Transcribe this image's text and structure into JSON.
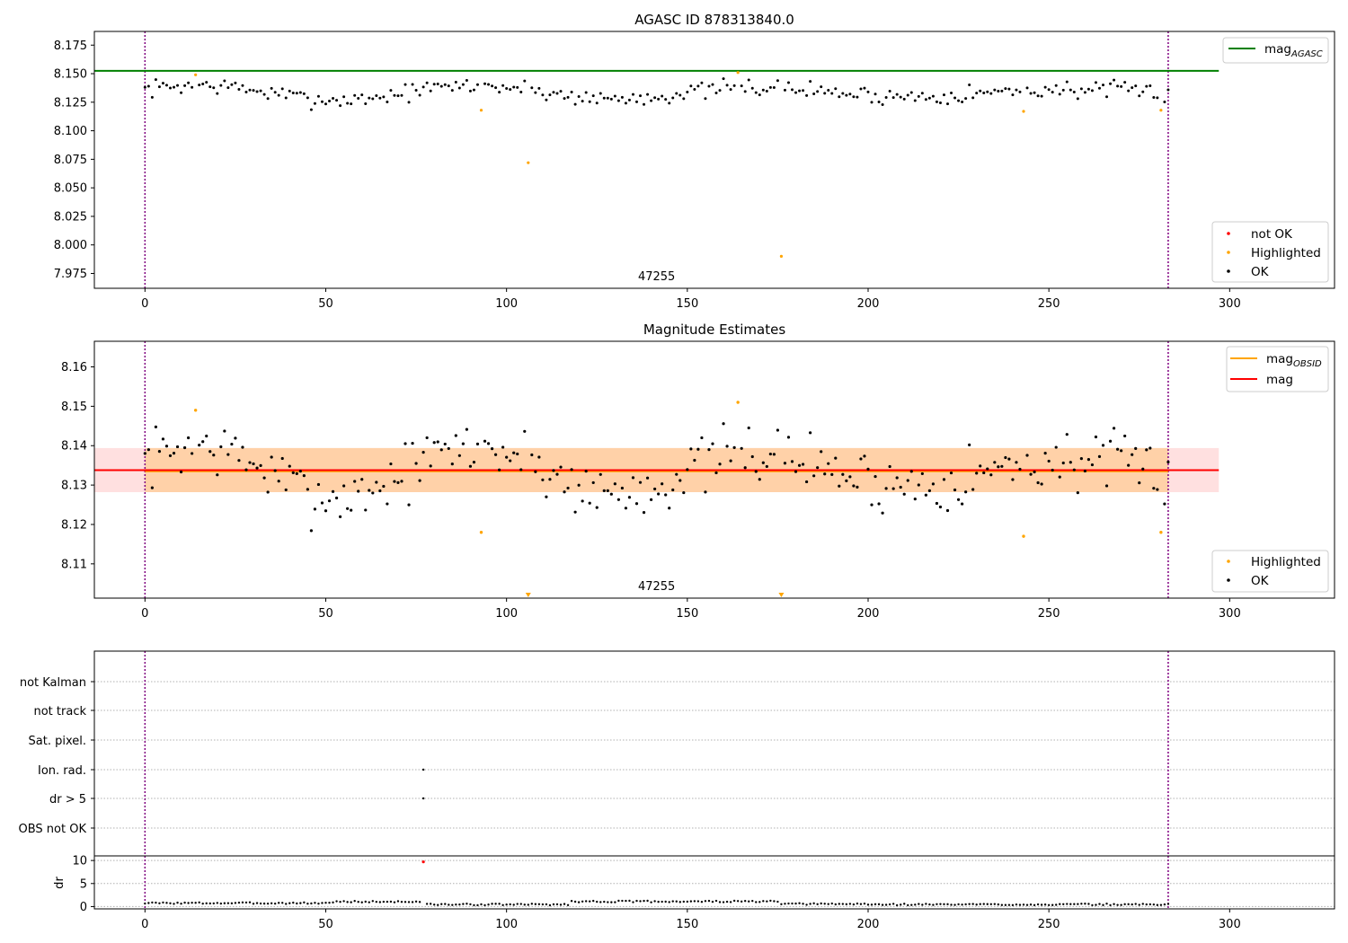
{
  "chart_data": [
    {
      "type": "scatter",
      "title": "AGASC ID 878313840.0",
      "xlim": [
        -14,
        329
      ],
      "ylim": [
        7.962,
        8.187
      ],
      "xticks": [
        "0",
        "50",
        "100",
        "150",
        "200",
        "250",
        "300"
      ],
      "yticks": [
        "7.975",
        "8.000",
        "8.025",
        "8.050",
        "8.075",
        "8.100",
        "8.125",
        "8.150",
        "8.175"
      ],
      "obsid_label": "47255",
      "obsid_boundaries": [
        0,
        283
      ],
      "lines": [
        {
          "name": "mag",
          "sub": "AGASC",
          "color": "#008000",
          "y": 8.1525,
          "x_range": [
            -14,
            297
          ]
        }
      ],
      "legend_lines": [
        {
          "name": "mag",
          "sub": "AGASC",
          "color": "#008000"
        }
      ],
      "legend_points": [
        {
          "name": "not OK",
          "color": "#ff0000"
        },
        {
          "name": "Highlighted",
          "color": "#ffa500"
        },
        {
          "name": "OK",
          "color": "#000000"
        }
      ],
      "highlighted": {
        "x": [
          14,
          93,
          106,
          164,
          176,
          243,
          281
        ],
        "y": [
          8.149,
          8.118,
          8.072,
          8.151,
          7.99,
          8.117,
          8.118
        ]
      },
      "ok_seed": 7
    },
    {
      "type": "scatter",
      "title": "Magnitude Estimates",
      "xlim": [
        -14,
        329
      ],
      "ylim": [
        8.1013,
        8.1665
      ],
      "xticks": [
        "0",
        "50",
        "100",
        "150",
        "200",
        "250",
        "300"
      ],
      "yticks": [
        "8.11",
        "8.12",
        "8.13",
        "8.14",
        "8.15",
        "8.16"
      ],
      "obsid_label": "47255",
      "obsid_boundaries": [
        0,
        283
      ],
      "bands": [
        {
          "name": "mag",
          "color": "#ff0000",
          "opacity": 0.12,
          "y": [
            8.1282,
            8.1394
          ],
          "x_range": [
            -14,
            297
          ]
        },
        {
          "name": "mag OBSID",
          "color": "#ffa500",
          "opacity": 0.25,
          "y": [
            8.1282,
            8.1394
          ],
          "x_range": [
            0,
            283
          ]
        }
      ],
      "lines": [
        {
          "name": "mag",
          "sub": "OBSID",
          "color": "#ffa500",
          "y": 8.1335,
          "x_range": [
            0,
            283
          ]
        },
        {
          "name": "mag",
          "sub": "",
          "color": "#ff0000",
          "y": 8.1338,
          "x_range": [
            -14,
            297
          ]
        }
      ],
      "legend_lines": [
        {
          "name": "mag",
          "sub": "OBSID",
          "color": "#ffa500"
        },
        {
          "name": "mag",
          "sub": "",
          "color": "#ff0000"
        }
      ],
      "legend_points": [
        {
          "name": "Highlighted",
          "color": "#ffa500"
        },
        {
          "name": "OK",
          "color": "#000000"
        }
      ],
      "highlighted": {
        "x": [
          14,
          93,
          164,
          243,
          281
        ],
        "y": [
          8.149,
          8.118,
          8.151,
          8.117,
          8.118
        ]
      },
      "off_scale_markers": {
        "x": [
          106,
          176
        ]
      },
      "ok_seed": 7
    },
    {
      "type": "scatter",
      "title": "",
      "xlim": [
        -14,
        329
      ],
      "categories": [
        "not Kalman",
        "not track",
        "Sat. pixel.",
        "Ion. rad.",
        "dr > 5",
        "OBS not OK"
      ],
      "flag_points": [
        {
          "category": "Ion. rad.",
          "x": 77
        },
        {
          "category": "dr > 5",
          "x": 77
        }
      ],
      "obsid_boundaries": [
        0,
        283
      ]
    },
    {
      "type": "scatter",
      "title": "",
      "ylabel": "dr",
      "xlim": [
        -14,
        329
      ],
      "ylim": [
        -0.5,
        11
      ],
      "xticks": [
        "0",
        "50",
        "100",
        "150",
        "200",
        "250",
        "300"
      ],
      "yticks": [
        "0",
        "5",
        "10"
      ],
      "outlier": {
        "x": 77,
        "y": 9.7,
        "color": "#ff0000"
      },
      "obsid_boundaries": [
        0,
        283
      ]
    }
  ]
}
